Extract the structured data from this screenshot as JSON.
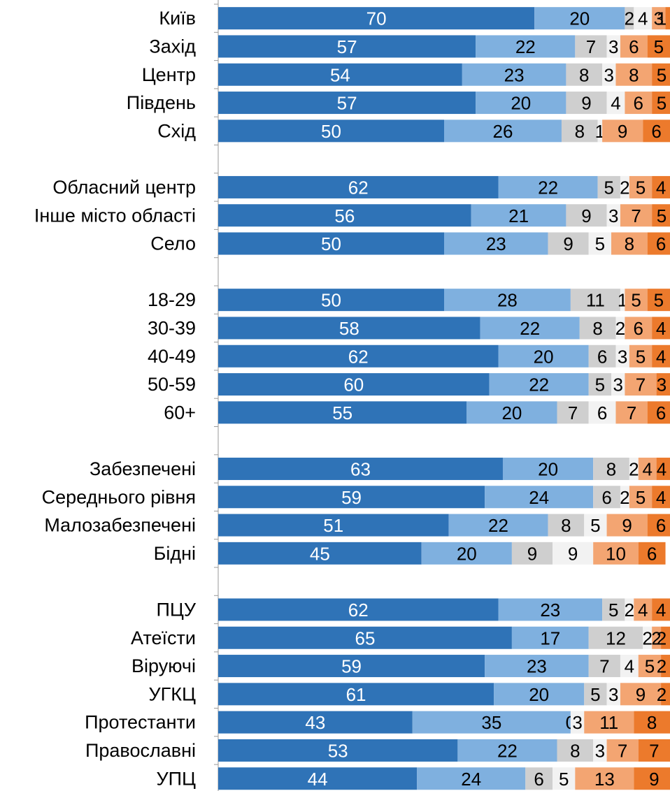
{
  "chart_data": {
    "type": "bar",
    "orientation": "horizontal",
    "stacked": true,
    "xlim": [
      0,
      100
    ],
    "grid": false,
    "legend": "none",
    "series_colors": [
      "#2f73b7",
      "#7fb0df",
      "#cfcfcf",
      "#f2f2f2",
      "#f3a572",
      "#ec7a2c"
    ],
    "label_colors": [
      "#ffffff",
      "#000000",
      "#000000",
      "#000000",
      "#000000",
      "#000000"
    ],
    "rows": [
      {
        "label": "Київ",
        "values": [
          70,
          20,
          2,
          4,
          3,
          1
        ]
      },
      {
        "label": "Захід",
        "values": [
          57,
          22,
          7,
          3,
          6,
          5
        ]
      },
      {
        "label": "Центр",
        "values": [
          54,
          23,
          8,
          3,
          8,
          5
        ]
      },
      {
        "label": "Південь",
        "values": [
          57,
          20,
          9,
          4,
          6,
          5
        ]
      },
      {
        "label": "Схід",
        "values": [
          50,
          26,
          8,
          1,
          9,
          6
        ]
      },
      null,
      {
        "label": "Обласний центр",
        "values": [
          62,
          22,
          5,
          2,
          5,
          4
        ]
      },
      {
        "label": "Інше місто області",
        "values": [
          56,
          21,
          9,
          3,
          7,
          5
        ]
      },
      {
        "label": "Село",
        "values": [
          50,
          23,
          9,
          5,
          8,
          6
        ]
      },
      null,
      {
        "label": "18-29",
        "values": [
          50,
          28,
          11,
          1,
          5,
          5
        ]
      },
      {
        "label": "30-39",
        "values": [
          58,
          22,
          8,
          2,
          6,
          4
        ]
      },
      {
        "label": "40-49",
        "values": [
          62,
          20,
          6,
          3,
          5,
          4
        ]
      },
      {
        "label": "50-59",
        "values": [
          60,
          22,
          5,
          3,
          7,
          3
        ]
      },
      {
        "label": "60+",
        "values": [
          55,
          20,
          7,
          6,
          7,
          6
        ]
      },
      null,
      {
        "label": "Забезпечені",
        "values": [
          63,
          20,
          8,
          2,
          4,
          4
        ]
      },
      {
        "label": "Середнього рівня",
        "values": [
          59,
          24,
          6,
          2,
          5,
          4
        ]
      },
      {
        "label": "Малозабезпечені",
        "values": [
          51,
          22,
          8,
          5,
          9,
          6
        ]
      },
      {
        "label": "Бідні",
        "values": [
          45,
          20,
          9,
          9,
          10,
          6
        ]
      },
      null,
      {
        "label": "ПЦУ",
        "values": [
          62,
          23,
          5,
          2,
          4,
          4
        ]
      },
      {
        "label": "Атеїсти",
        "values": [
          65,
          17,
          12,
          2,
          2,
          2
        ]
      },
      {
        "label": "Віруючі",
        "values": [
          59,
          23,
          7,
          4,
          5,
          2
        ]
      },
      {
        "label": "УГКЦ",
        "values": [
          61,
          20,
          5,
          3,
          9,
          2
        ]
      },
      {
        "label": "Протестанти",
        "values": [
          43,
          35,
          0,
          3,
          11,
          8
        ]
      },
      {
        "label": "Православні",
        "values": [
          53,
          22,
          8,
          3,
          7,
          7
        ]
      },
      {
        "label": "УПЦ",
        "values": [
          44,
          24,
          6,
          5,
          13,
          9
        ]
      }
    ]
  }
}
